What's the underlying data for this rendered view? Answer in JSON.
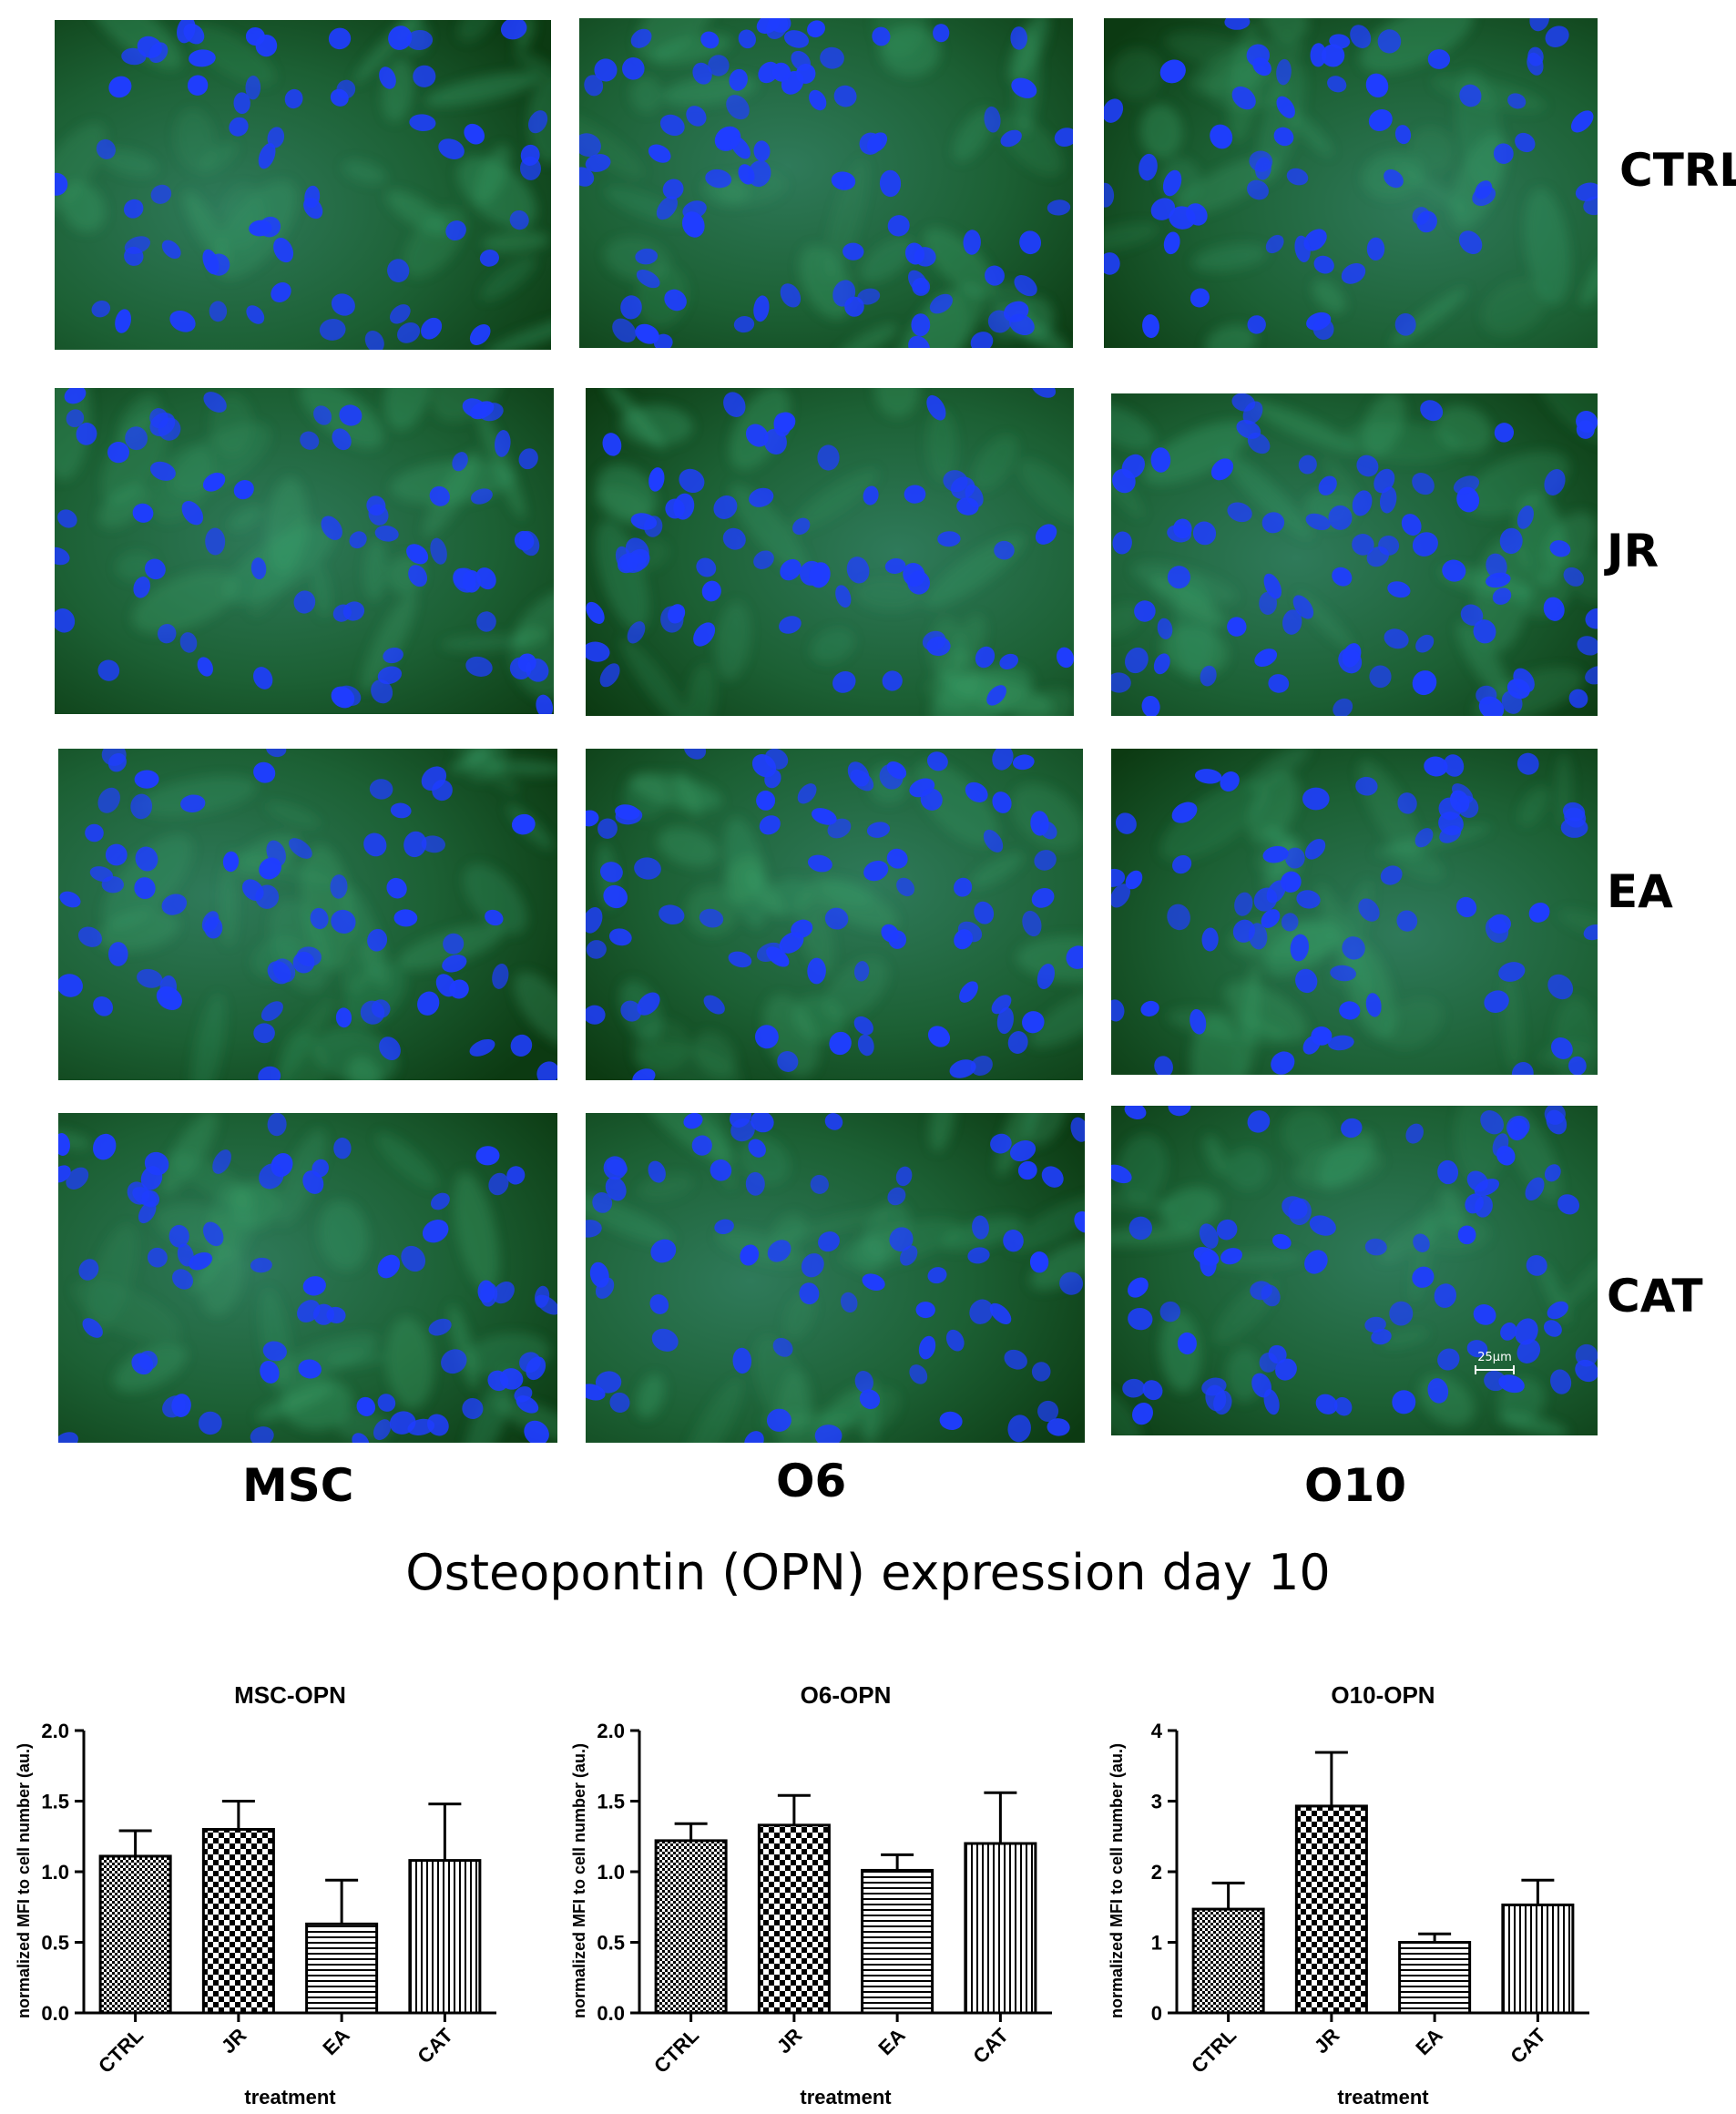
{
  "figure": {
    "row_labels": [
      "CTRL",
      "JR",
      "EA",
      "CAT"
    ],
    "column_labels": [
      "MSC",
      "O6",
      "O10"
    ],
    "scale_bar_label": "25µm",
    "main_title": "Osteopontin (OPN) expression day 10",
    "colors": {
      "nuclei": "#1f3dff",
      "background": "#10501a",
      "cytoplasm": "#3aa06a"
    }
  },
  "chart_data": [
    {
      "type": "bar",
      "title": "MSC-OPN",
      "xlabel": "treatment",
      "ylabel": "normalized MFI to cell number (au.)",
      "categories": [
        "CTRL",
        "JR",
        "EA",
        "CAT"
      ],
      "values": [
        1.11,
        1.3,
        0.63,
        1.08
      ],
      "errors": [
        0.18,
        0.2,
        0.31,
        0.4
      ],
      "ylim": [
        0,
        2.0
      ],
      "yticks": [
        "0.0",
        "0.5",
        "1.0",
        "1.5",
        "2.0"
      ],
      "patterns": [
        "checker-fine",
        "checker-coarse",
        "horizontal-lines",
        "vertical-lines"
      ],
      "grid": false
    },
    {
      "type": "bar",
      "title": "O6-OPN",
      "xlabel": "treatment",
      "ylabel": "normalized MFI to cell number (au.)",
      "categories": [
        "CTRL",
        "JR",
        "EA",
        "CAT"
      ],
      "values": [
        1.22,
        1.33,
        1.01,
        1.2
      ],
      "errors": [
        0.12,
        0.21,
        0.11,
        0.36
      ],
      "ylim": [
        0,
        2.0
      ],
      "yticks": [
        "0.0",
        "0.5",
        "1.0",
        "1.5",
        "2.0"
      ],
      "patterns": [
        "checker-fine",
        "checker-coarse",
        "horizontal-lines",
        "vertical-lines"
      ],
      "grid": false
    },
    {
      "type": "bar",
      "title": "O10-OPN",
      "xlabel": "treatment",
      "ylabel": "normalized MFI to cell number (au.)",
      "categories": [
        "CTRL",
        "JR",
        "EA",
        "CAT"
      ],
      "values": [
        1.47,
        2.93,
        1.0,
        1.53
      ],
      "errors": [
        0.37,
        0.76,
        0.12,
        0.35
      ],
      "ylim": [
        0,
        4
      ],
      "yticks": [
        "0",
        "1",
        "2",
        "3",
        "4"
      ],
      "patterns": [
        "checker-fine",
        "checker-coarse",
        "horizontal-lines",
        "vertical-lines"
      ],
      "grid": false
    }
  ]
}
